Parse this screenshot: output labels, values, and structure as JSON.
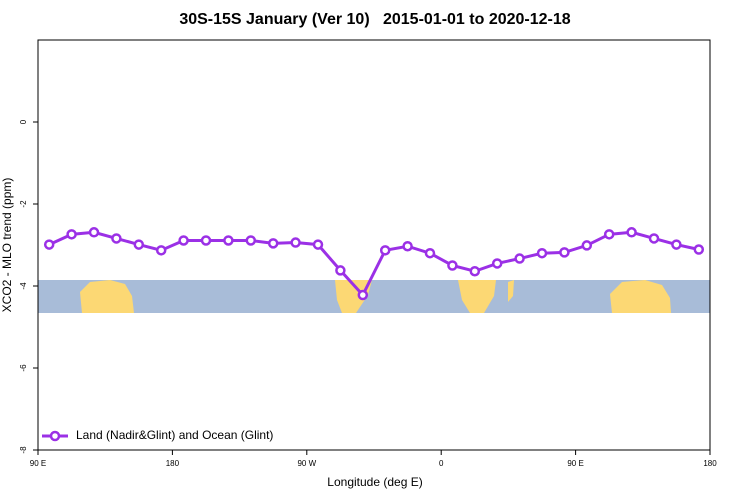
{
  "chart_data": {
    "type": "line",
    "title": "30S-15S January (Ver 10)   2015-01-01 to 2020-12-18",
    "x_label": "Longitude (deg E)",
    "y_label": "XCO2 - MLO trend (ppm)",
    "x": [
      97.5,
      112.5,
      127.5,
      142.5,
      157.5,
      172.5,
      187.5,
      202.5,
      217.5,
      232.5,
      247.5,
      262.5,
      277.5,
      292.5,
      307.5,
      322.5,
      337.5,
      352.5,
      367.5,
      382.5,
      397.5,
      412.5,
      427.5,
      442.5,
      457.5,
      472.5,
      487.5,
      502.5,
      517.5,
      532.5
    ],
    "series": [
      {
        "name": "Land (Nadir&Glint) and Ocean (Glint)",
        "color": "#9b30e6",
        "values": [
          -2.99,
          -2.74,
          -2.69,
          -2.84,
          -2.99,
          -3.13,
          -2.89,
          -2.89,
          -2.89,
          -2.89,
          -2.96,
          -2.94,
          -2.99,
          -3.62,
          -4.22,
          -3.13,
          -3.03,
          -3.2,
          -3.5,
          -3.64,
          -3.45,
          -3.33,
          -3.2,
          -3.18,
          -3.01,
          -2.74,
          -2.69,
          -2.84,
          -2.99,
          -3.11
        ]
      }
    ],
    "xlim": [
      90,
      540
    ],
    "xticks": [
      {
        "value": 90,
        "label": "90 E"
      },
      {
        "value": 180,
        "label": "180"
      },
      {
        "value": 270,
        "label": "90 W"
      },
      {
        "value": 360,
        "label": "0"
      },
      {
        "value": 450,
        "label": "90 E"
      },
      {
        "value": 540,
        "label": "180"
      }
    ],
    "ylim": [
      -8,
      2
    ],
    "yticks": [
      -8,
      -6,
      -4,
      -2,
      0
    ],
    "legend": "lower left"
  }
}
